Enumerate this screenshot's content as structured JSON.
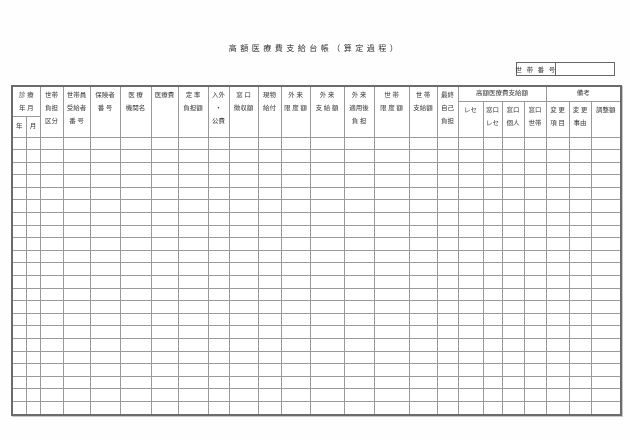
{
  "page": {
    "title": "高額医療費支給台帳（算定過程）",
    "household_number_label": "世 帯 番 号",
    "household_number_value": ""
  },
  "table": {
    "row_count": 22,
    "column_count": 24,
    "header": {
      "shinryo_top": "診 療\n年 月",
      "year": "年",
      "month": "月",
      "cols": [
        "世帯\n負担\n区分",
        "世帯員\n受給者\n番 号",
        "保険者\n番 号",
        "医 療\n機関名",
        "医療費",
        "定 率\n負担額",
        "入外\n・\n公費",
        "窓 口\n徴収額",
        "現物\n給付",
        "外 来\n限 度 額",
        "外 来\n支 給 額",
        "外 来\n適用後\n負 担",
        "世 帯\n限 度 額",
        "世 帯\n支給額",
        "最終\n自己\n負担"
      ],
      "groups": [
        {
          "label": "高額医療費支給額",
          "subs": [
            "レセ",
            "窓口\nレセ",
            "窓口\n個人",
            "窓口\n世帯"
          ]
        },
        {
          "label": "備考",
          "subs": [
            "変 更\n項 目",
            "変 更\n事由",
            "調整額"
          ]
        }
      ]
    }
  },
  "colors": {
    "background": "#fefefe",
    "text": "#333333",
    "grid_line": "#9a9a9a",
    "outer_border": "#6b6b6b"
  }
}
